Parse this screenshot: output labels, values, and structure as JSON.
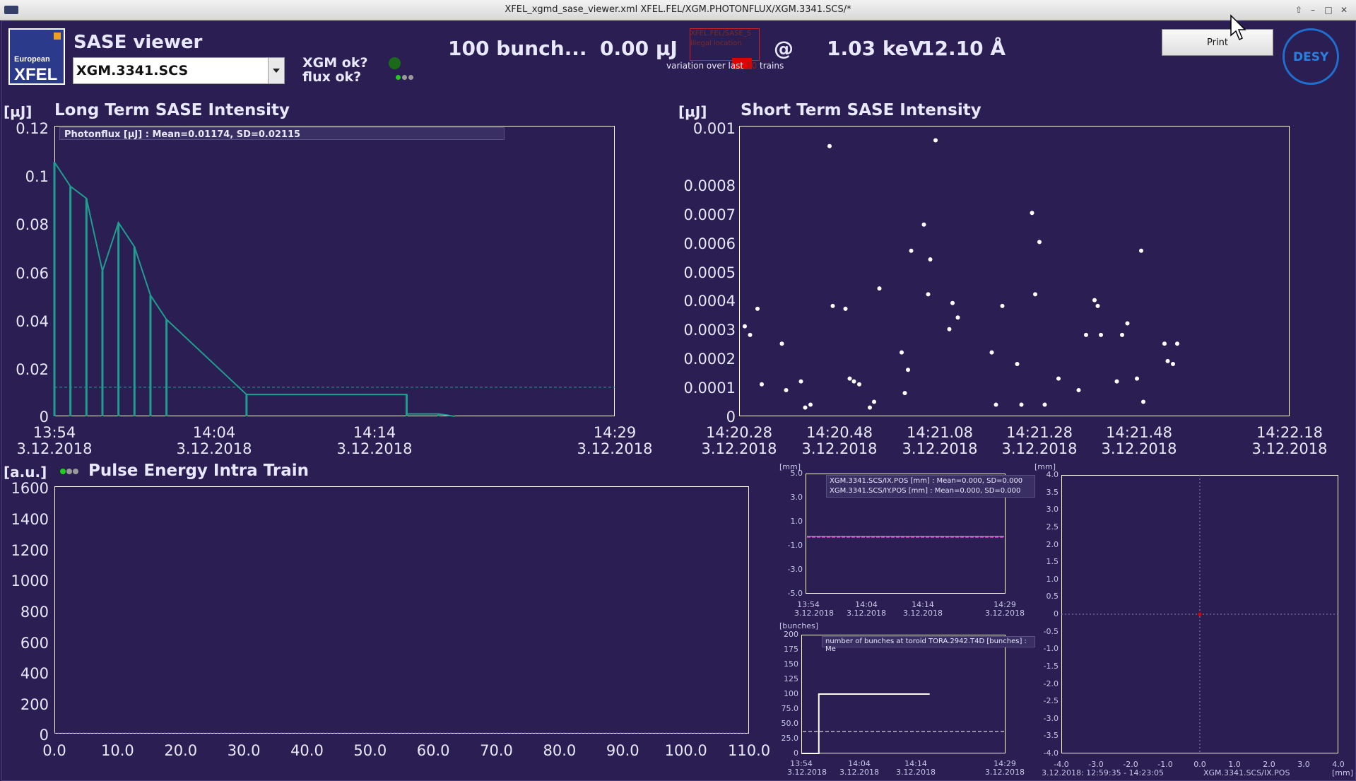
{
  "window": {
    "title": "XFEL_xgmd_sase_viewer.xml   XFEL.FEL/XGM.PHOTONFLUX/XGM.3341.SCS/*"
  },
  "header": {
    "logo_top": "European",
    "logo_bottom": "XFEL",
    "app_title": "SASE viewer",
    "device_select": "XGM.3341.SCS",
    "xgm_ok": "XGM ok?",
    "flux_ok": "flux ok?",
    "bunches": "100 bunch...",
    "energy": "0.00 µJ",
    "warning_text": "XFEL.FEL/SASE_S illegal location",
    "variation_label": "variation over last",
    "variation_value": "10",
    "trains_label": "trains",
    "at": "@",
    "photon_energy": "1.03 keV",
    "wavelength": "12.10 Å",
    "print_label": "Print",
    "desy_logo": "DESY"
  },
  "colors": {
    "background": "#2b1e52",
    "teal": "#1f9e8f",
    "magenta": "#e040e0",
    "white": "#ffffff",
    "green": "#1fcf1f",
    "red": "#e00000"
  },
  "panels": {
    "long_term": {
      "title": "Long Term SASE Intensity",
      "unit": "[µJ]",
      "legend": "Photonflux [µJ] : Mean=0.01174, SD=0.02115",
      "yticks": [
        "0.12",
        "0.1",
        "0.08",
        "0.06",
        "0.04",
        "0.02",
        "0"
      ],
      "xticks": [
        {
          "t": "13:54",
          "d": "3.12.2018"
        },
        {
          "t": "14:04",
          "d": "3.12.2018"
        },
        {
          "t": "14:14",
          "d": "3.12.2018"
        },
        {
          "t": "14:29",
          "d": "3.12.2018"
        }
      ]
    },
    "short_term": {
      "title": "Short Term SASE Intensity",
      "unit": "[µJ]",
      "yticks": [
        "0.001",
        "0.0008",
        "0.0007",
        "0.0006",
        "0.0005",
        "0.0004",
        "0.0003",
        "0.0002",
        "0.0001",
        "0"
      ],
      "xticks": [
        {
          "t": "14:20.28",
          "d": "3.12.2018"
        },
        {
          "t": "14:20.48",
          "d": "3.12.2018"
        },
        {
          "t": "14:21.08",
          "d": "3.12.2018"
        },
        {
          "t": "14:21.28",
          "d": "3.12.2018"
        },
        {
          "t": "14:21.48",
          "d": "3.12.2018"
        },
        {
          "t": "14:22.18",
          "d": "3.12.2018"
        }
      ]
    },
    "intra_train": {
      "title": "Pulse Energy Intra Train",
      "unit": "[a.u.]",
      "yticks": [
        "1600",
        "1400",
        "1200",
        "1000",
        "800",
        "600",
        "400",
        "200",
        "0"
      ],
      "xticks": [
        "0.0",
        "10.0",
        "20.0",
        "30.0",
        "40.0",
        "50.0",
        "60.0",
        "70.0",
        "80.0",
        "90.0",
        "100.0",
        "110.0"
      ]
    },
    "position": {
      "unit": "[mm]",
      "legend_x": "XGM.3341.SCS/IX.POS [mm] : Mean=0.000, SD=0.000",
      "legend_y": "XGM.3341.SCS/IY.POS [mm] : Mean=0.000, SD=0.000",
      "yticks": [
        "5.0",
        "3.0",
        "1.0",
        "-1.0",
        "-3.0",
        "-5.0"
      ],
      "xticks": [
        {
          "t": "13:54",
          "d": "3.12.2018"
        },
        {
          "t": "14:04",
          "d": "3.12.2018"
        },
        {
          "t": "14:14",
          "d": "3.12.2018"
        },
        {
          "t": "14:29",
          "d": "3.12.2018"
        }
      ]
    },
    "bunches": {
      "unit": "[bunches]",
      "legend": "number of bunches at toroid TORA.2942.T4D [bunches] : Me",
      "yticks": [
        "200",
        "175",
        "150",
        "125",
        "100",
        "75.0",
        "50.0",
        "25.0",
        "0"
      ],
      "xticks": [
        {
          "t": "13:54",
          "d": "3.12.2018"
        },
        {
          "t": "14:04",
          "d": "3.12.2018"
        },
        {
          "t": "14:14",
          "d": "3.12.2018"
        },
        {
          "t": "14:29",
          "d": "3.12.2018"
        }
      ]
    },
    "xy": {
      "unit_y": "[mm]",
      "unit_x": "[mm]",
      "time_label": "3.12.2018: 12:59:35 - 14:23:05",
      "x_name": "XGM.3341.SCS/IX.POS",
      "yticks": [
        "4.0",
        "3.5",
        "3.0",
        "2.5",
        "2.0",
        "1.5",
        "1.0",
        "0.5",
        "0",
        "-0.5",
        "-1.0",
        "-1.5",
        "-2.0",
        "-2.5",
        "-3.0",
        "-3.5",
        "-4.0"
      ],
      "xticks": [
        "-4.0",
        "-3.0",
        "-2.0",
        "-1.0",
        "0.0",
        "1.0",
        "2.0",
        "3.0",
        "4.0"
      ]
    }
  },
  "chart_data": [
    {
      "type": "line",
      "title": "Long Term SASE Intensity",
      "ylabel": "[µJ]",
      "ylim": [
        0,
        0.12
      ],
      "series": [
        {
          "name": "Photonflux [µJ] : Mean=0.01174, SD=0.02115",
          "x": [
            "13:54",
            "13:55",
            "13:56",
            "13:57",
            "13:58",
            "13:59",
            "14:00",
            "14:01",
            "14:06",
            "14:16",
            "14:16",
            "14:18",
            "14:19"
          ],
          "values": [
            0.105,
            0.095,
            0.09,
            0.06,
            0.08,
            0.07,
            0.05,
            0.04,
            0.009,
            0.009,
            0.001,
            0.001,
            0.0
          ]
        }
      ],
      "mean_line": 0.012
    },
    {
      "type": "scatter",
      "title": "Short Term SASE Intensity",
      "ylabel": "[µJ]",
      "ylim": [
        0,
        0.001
      ],
      "points": [
        [
          0.0,
          0.00031
        ],
        [
          0.5,
          0.00028
        ],
        [
          1.2,
          0.00037
        ],
        [
          1.6,
          0.00011
        ],
        [
          3.5,
          0.00025
        ],
        [
          3.9,
          9e-05
        ],
        [
          5.3,
          0.00012
        ],
        [
          5.7,
          3e-05
        ],
        [
          6.2,
          4e-05
        ],
        [
          8.0,
          0.00093
        ],
        [
          8.3,
          0.00038
        ],
        [
          9.5,
          0.00037
        ],
        [
          9.9,
          0.00013
        ],
        [
          10.3,
          0.00012
        ],
        [
          10.8,
          0.00011
        ],
        [
          11.8,
          3e-05
        ],
        [
          12.2,
          5e-05
        ],
        [
          12.7,
          0.00044
        ],
        [
          14.8,
          0.00022
        ],
        [
          15.1,
          8e-05
        ],
        [
          15.4,
          0.00016
        ],
        [
          15.7,
          0.00057
        ],
        [
          16.9,
          0.00066
        ],
        [
          17.3,
          0.00042
        ],
        [
          17.5,
          0.00054
        ],
        [
          18.0,
          0.00095
        ],
        [
          19.3,
          0.0003
        ],
        [
          19.6,
          0.00039
        ],
        [
          20.1,
          0.00034
        ],
        [
          23.3,
          0.00022
        ],
        [
          23.7,
          4e-05
        ],
        [
          24.3,
          0.00038
        ],
        [
          25.7,
          0.00018
        ],
        [
          26.1,
          4e-05
        ],
        [
          27.1,
          0.0007
        ],
        [
          27.4,
          0.00042
        ],
        [
          27.8,
          0.0006
        ],
        [
          28.3,
          4e-05
        ],
        [
          29.6,
          0.00013
        ],
        [
          31.5,
          9e-05
        ],
        [
          32.2,
          0.00028
        ],
        [
          33.0,
          0.0004
        ],
        [
          33.3,
          0.00038
        ],
        [
          33.6,
          0.00028
        ],
        [
          35.1,
          0.00012
        ],
        [
          35.6,
          0.00028
        ],
        [
          36.1,
          0.00032
        ],
        [
          37.0,
          0.00013
        ],
        [
          37.4,
          0.00057
        ],
        [
          37.6,
          5e-05
        ],
        [
          39.6,
          0.00025
        ],
        [
          39.9,
          0.00019
        ],
        [
          40.4,
          0.00018
        ],
        [
          40.8,
          0.00025
        ]
      ]
    },
    {
      "type": "line",
      "title": "Pulse Energy Intra Train",
      "ylabel": "[a.u.]",
      "ylim": [
        0,
        1600
      ],
      "xlim": [
        0,
        110
      ],
      "series": []
    },
    {
      "type": "line",
      "ylabel": "[mm]",
      "ylim": [
        -5,
        5
      ],
      "series": [
        {
          "name": "XGM.3341.SCS/IX.POS [mm] : Mean=0.000, SD=0.000",
          "values": [
            0,
            0
          ]
        },
        {
          "name": "XGM.3341.SCS/IY.POS [mm] : Mean=0.000, SD=0.000",
          "values": [
            0,
            0
          ]
        }
      ]
    },
    {
      "type": "line",
      "ylabel": "[bunches]",
      "ylim": [
        0,
        200
      ],
      "series": [
        {
          "name": "number of bunches at toroid TORA.2942.T4D [bunches] : Me",
          "x": [
            "13:54",
            "13:56",
            "13:57",
            "13:57",
            "14:16"
          ],
          "values": [
            0,
            0,
            0,
            100,
            100
          ]
        }
      ],
      "mean_line": 37
    },
    {
      "type": "scatter",
      "ylabel": "[mm]",
      "xlabel": "XGM.3341.SCS/IX.POS",
      "xlim": [
        -4,
        4
      ],
      "ylim": [
        -4,
        4
      ],
      "points": [
        [
          0,
          0
        ]
      ]
    }
  ]
}
